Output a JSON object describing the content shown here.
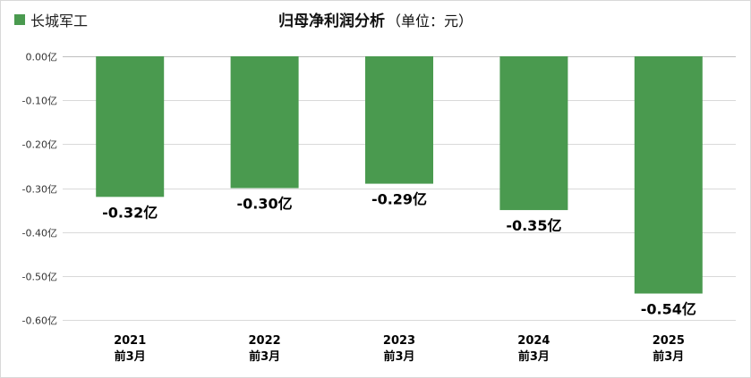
{
  "legend": {
    "label": "长城军工",
    "color": "#4a9a4f"
  },
  "title": "归母净利润分析",
  "subtitle": "（单位：元）",
  "chart_data": {
    "type": "bar",
    "categories": [
      [
        "2021",
        "前3月"
      ],
      [
        "2022",
        "前3月"
      ],
      [
        "2023",
        "前3月"
      ],
      [
        "2024",
        "前3月"
      ],
      [
        "2025",
        "前3月"
      ]
    ],
    "series": [
      {
        "name": "长城军工",
        "values": [
          -0.32,
          -0.3,
          -0.29,
          -0.35,
          -0.54
        ]
      }
    ],
    "data_labels": [
      "-0.32亿",
      "-0.30亿",
      "-0.29亿",
      "-0.35亿",
      "-0.54亿"
    ],
    "y_ticks": [
      0,
      -0.1,
      -0.2,
      -0.3,
      -0.4,
      -0.5,
      -0.6
    ],
    "y_tick_labels": [
      "0.00亿",
      "-0.10亿",
      "-0.20亿",
      "-0.30亿",
      "-0.40亿",
      "-0.50亿",
      "-0.60亿"
    ],
    "ylim": [
      -0.6,
      0
    ],
    "grid": true,
    "legend_position": "top-left",
    "bar_color": "#4a9a4f",
    "grid_color": "#d9d9d9",
    "axis_color": "#bfbfbf"
  }
}
